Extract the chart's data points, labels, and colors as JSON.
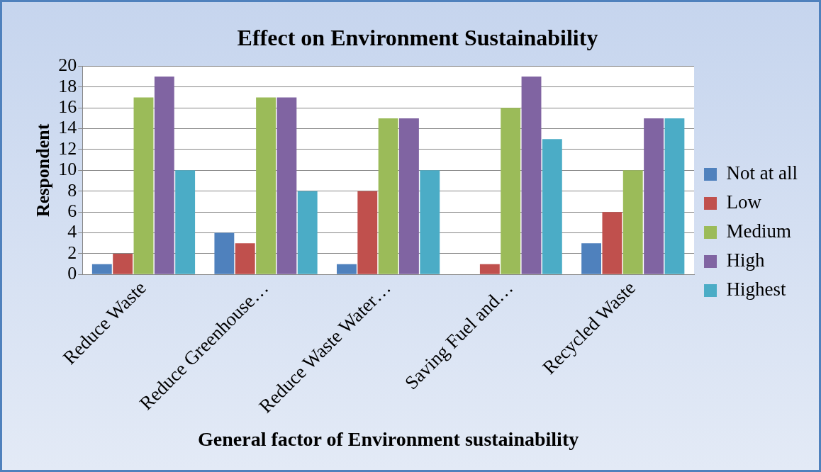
{
  "chart_data": {
    "type": "bar",
    "title": "Effect on Environment Sustainability",
    "xlabel": "General factor of Environment sustainability",
    "ylabel": "Respondent",
    "categories": [
      "Reduce Waste",
      "Reduce Greenhouse…",
      "Reduce Waste Water…",
      "Saving Fuel and…",
      "Recycled Waste"
    ],
    "series": [
      {
        "name": "Not at all",
        "color": "#4f81bd",
        "values": [
          1,
          4,
          1,
          0,
          3
        ]
      },
      {
        "name": "Low",
        "color": "#c0504d",
        "values": [
          2,
          3,
          8,
          1,
          6
        ]
      },
      {
        "name": "Medium",
        "color": "#9bbb59",
        "values": [
          17,
          17,
          15,
          16,
          10
        ]
      },
      {
        "name": "High",
        "color": "#8064a2",
        "values": [
          19,
          17,
          15,
          19,
          15
        ]
      },
      {
        "name": "Highest",
        "color": "#4bacc6",
        "values": [
          10,
          8,
          10,
          13,
          15
        ]
      }
    ],
    "ylim": [
      0,
      20
    ],
    "yticks": [
      0,
      2,
      4,
      6,
      8,
      10,
      12,
      14,
      16,
      18,
      20
    ],
    "grid": "y",
    "legend": "right"
  }
}
